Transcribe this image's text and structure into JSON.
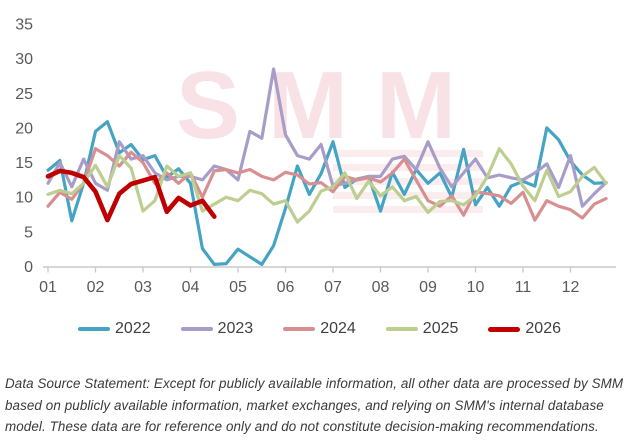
{
  "chart_data": {
    "type": "line",
    "title": "",
    "xlabel": "",
    "ylabel": "",
    "grid": false,
    "legend_position": "bottom",
    "x_axis": {
      "labels": [
        "01",
        "02",
        "03",
        "04",
        "05",
        "06",
        "07",
        "08",
        "09",
        "10",
        "11",
        "12"
      ],
      "unit": "month"
    },
    "y_axis": {
      "min": 0,
      "max": 35,
      "ticks": [
        0,
        5,
        10,
        15,
        20,
        25,
        30,
        35
      ]
    },
    "points_per_month": 4,
    "series": [
      {
        "name": "2022",
        "color": "#45A3C4",
        "width": 3.2,
        "start": 1.0,
        "step": 0.25,
        "values": [
          13.9,
          15.3,
          6.6,
          12.0,
          19.5,
          20.9,
          16.4,
          17.6,
          15.4,
          16.0,
          12.9,
          14.1,
          12.0,
          2.6,
          0.3,
          0.4,
          2.5,
          1.4,
          0.3,
          3.0,
          8.4,
          14.5,
          10.4,
          13.4,
          18.0,
          11.4,
          12.6,
          13.0,
          8.0,
          13.6,
          10.4,
          14.0,
          12.0,
          13.5,
          10.0,
          16.9,
          8.9,
          11.4,
          8.7,
          11.6,
          12.3,
          11.6,
          20.0,
          18.3,
          15.2,
          13.2,
          12.0,
          12.1
        ]
      },
      {
        "name": "2023",
        "color": "#A89CC8",
        "width": 3.2,
        "start": 1.0,
        "step": 0.25,
        "values": [
          12.0,
          15.0,
          11.5,
          15.5,
          12.0,
          11.0,
          18.0,
          15.5,
          16.0,
          13.5,
          12.5,
          13.0,
          13.0,
          12.5,
          14.5,
          14.0,
          12.5,
          19.5,
          18.5,
          28.5,
          19.0,
          16.0,
          15.5,
          17.6,
          11.6,
          12.0,
          12.5,
          13.0,
          13.0,
          15.5,
          15.9,
          14.0,
          18.0,
          14.2,
          11.5,
          13.5,
          15.5,
          12.8,
          13.2,
          12.8,
          12.5,
          13.5,
          14.8,
          11.4,
          16.0,
          8.7,
          10.5,
          12.1
        ]
      },
      {
        "name": "2024",
        "color": "#D88F92",
        "width": 3.2,
        "start": 1.0,
        "step": 0.25,
        "values": [
          8.7,
          10.7,
          9.7,
          12.0,
          17.0,
          16.0,
          14.5,
          16.5,
          15.0,
          12.0,
          13.5,
          12.0,
          13.5,
          10.0,
          13.8,
          14.0,
          13.5,
          14.0,
          13.0,
          12.5,
          13.6,
          13.2,
          11.9,
          12.1,
          10.8,
          13.0,
          12.5,
          12.8,
          12.2,
          13.5,
          15.5,
          12.5,
          9.5,
          8.7,
          10.2,
          7.4,
          10.8,
          10.5,
          10.2,
          9.1,
          10.7,
          6.7,
          9.5,
          8.7,
          8.2,
          7.0,
          9.0,
          9.8
        ]
      },
      {
        "name": "2025",
        "color": "#BCCE90",
        "width": 3.2,
        "start": 1.0,
        "step": 0.25,
        "values": [
          10.4,
          11.0,
          10.5,
          12.0,
          14.6,
          11.5,
          16.0,
          14.2,
          8.0,
          9.5,
          14.5,
          13.0,
          13.5,
          8.0,
          9.0,
          10.0,
          9.5,
          11.0,
          10.5,
          9.0,
          9.5,
          6.4,
          8.0,
          10.9,
          11.5,
          13.5,
          9.8,
          12.3,
          10.2,
          11.5,
          9.5,
          10.1,
          7.8,
          9.4,
          9.5,
          8.9,
          10.2,
          13.0,
          17.0,
          14.8,
          11.6,
          9.5,
          13.9,
          10.1,
          10.8,
          13.0,
          14.3,
          12.0
        ]
      },
      {
        "name": "2026",
        "color": "#C00000",
        "width": 4.6,
        "start": 1.0,
        "step": 0.25,
        "values": [
          13.0,
          13.8,
          13.5,
          12.9,
          10.8,
          6.7,
          10.5,
          11.9,
          12.4,
          12.9,
          7.9,
          9.9,
          8.8,
          9.5,
          7.2
        ]
      }
    ]
  },
  "legend": {
    "entries": [
      "2022",
      "2023",
      "2024",
      "2025",
      "2026"
    ]
  },
  "watermark": {
    "text": "SMM"
  },
  "footer": {
    "text": "Data Source Statement: Except for publicly available information, all other data are processed by SMM based on publicly available information, market exchanges, and relying on SMM's internal database model. These data are for reference only and do not constitute decision-making recommendations."
  },
  "colors": {
    "axis_line": "#C8C8C8",
    "tick_label": "#595959",
    "legend_label": "#404040",
    "footer_text": "#3A3A3A",
    "watermark_pink": "#F8E0E4"
  }
}
